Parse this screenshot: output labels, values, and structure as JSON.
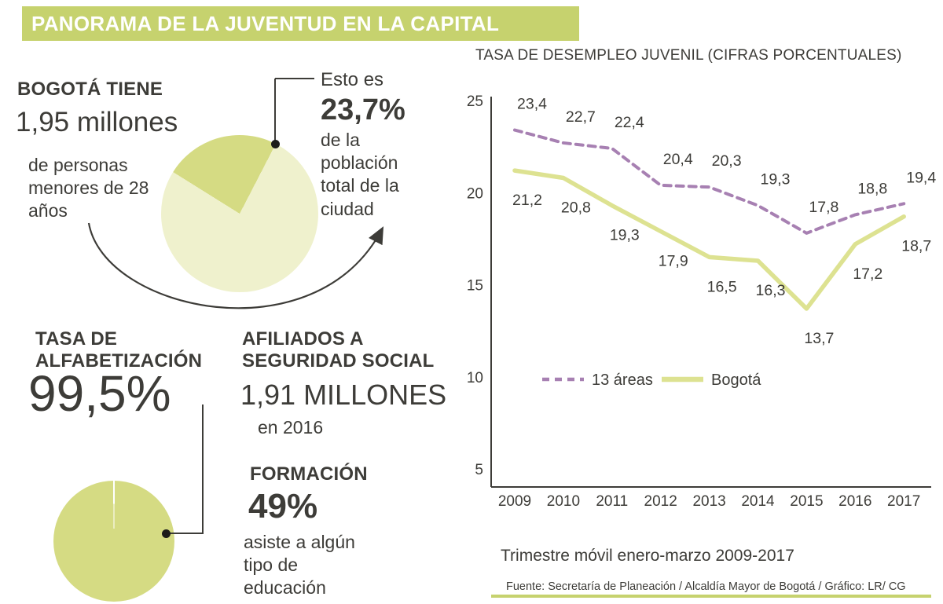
{
  "colors": {
    "accent": "#c6d26e",
    "pie_light": "#eff1cd",
    "pie_dark": "#d5db83",
    "line_green": "#dde291",
    "line_purple": "#a780b2",
    "text": "#3d3c38"
  },
  "header": {
    "title": "PANORAMA DE LA JUVENTUD EN LA CAPITAL"
  },
  "population": {
    "heading": "BOGOTÁ TIENE",
    "value": "1,95 millones",
    "description": "de personas menores de 28 años",
    "share_percent": 23.7,
    "callout": {
      "intro": "Esto es",
      "value": "23,7%",
      "description": "de la población total de la ciudad"
    }
  },
  "literacy": {
    "heading": "TASA DE ALFABETIZACIÓN",
    "value": "99,5%",
    "percent": 99.5
  },
  "social_security": {
    "heading": "AFILIADOS A SEGURIDAD SOCIAL",
    "value": "1,91 MILLONES",
    "period": "en 2016"
  },
  "education": {
    "heading": "FORMACIÓN",
    "value": "49%",
    "description": "asiste a algún tipo de educación"
  },
  "chart_data": {
    "type": "line",
    "title": "TASA DE DESEMPLEO JUVENIL (CIFRAS PORCENTUALES)",
    "x": [
      "2009",
      "2010",
      "2011",
      "2012",
      "2013",
      "2014",
      "2015",
      "2016",
      "2017"
    ],
    "series": [
      {
        "name": "13 áreas",
        "style": "dashed",
        "color": "#a780b2",
        "values": [
          23.4,
          22.7,
          22.4,
          20.4,
          20.3,
          19.3,
          17.8,
          18.8,
          19.4
        ],
        "labels": [
          "23,4",
          "22,7",
          "22,4",
          "20,4",
          "20,3",
          "19,3",
          "17,8",
          "18,8",
          "19,4"
        ]
      },
      {
        "name": "Bogotá",
        "style": "solid",
        "color": "#dde291",
        "values": [
          21.2,
          20.8,
          19.3,
          17.9,
          16.5,
          16.3,
          13.7,
          17.2,
          18.7
        ],
        "labels": [
          "21,2",
          "20,8",
          "19,3",
          "17,9",
          "16,5",
          "16,3",
          "13,7",
          "17,2",
          "18,7"
        ]
      }
    ],
    "ylim": [
      5,
      25
    ],
    "yticks": [
      25,
      20,
      15,
      10,
      5
    ],
    "grid": false,
    "legend_position": "inside-bottom-left",
    "note": "Trimestre móvil enero-marzo 2009-2017",
    "source": "Fuente: Secretaría de Planeación / Alcaldía Mayor de Bogotá / Gráfico: LR/ CG"
  }
}
